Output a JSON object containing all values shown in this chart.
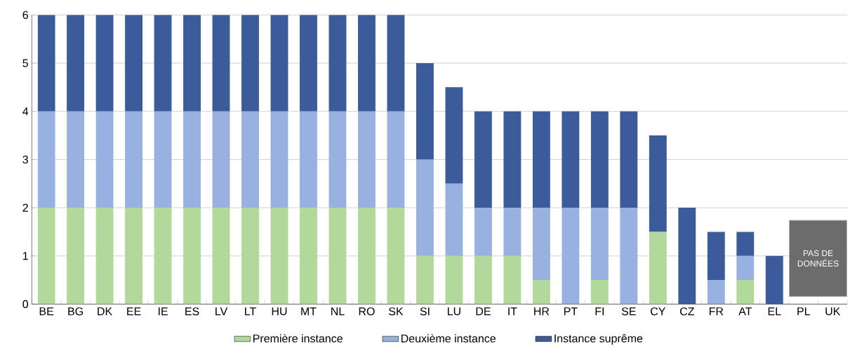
{
  "chart_data": {
    "type": "bar",
    "stacked": true,
    "categories": [
      "BE",
      "BG",
      "DK",
      "EE",
      "IE",
      "ES",
      "LV",
      "LT",
      "HU",
      "MT",
      "NL",
      "RO",
      "SK",
      "SI",
      "LU",
      "DE",
      "IT",
      "HR",
      "PT",
      "FI",
      "SE",
      "CY",
      "CZ",
      "FR",
      "AT",
      "EL",
      "PL",
      "UK"
    ],
    "series": [
      {
        "name": "Première instance",
        "color": "#b3d89c",
        "values": [
          2,
          2,
          2,
          2,
          2,
          2,
          2,
          2,
          2,
          2,
          2,
          2,
          2,
          1,
          1,
          1,
          1,
          0.5,
          0,
          0.5,
          0,
          1.5,
          0,
          0,
          0.5,
          0,
          null,
          null
        ]
      },
      {
        "name": "Deuxième instance",
        "color": "#98b1e0",
        "values": [
          2,
          2,
          2,
          2,
          2,
          2,
          2,
          2,
          2,
          2,
          2,
          2,
          2,
          2,
          1.5,
          1,
          1,
          1.5,
          2,
          1.5,
          2,
          0,
          0,
          0.5,
          0.5,
          0,
          null,
          null
        ]
      },
      {
        "name": "Instance suprême",
        "color": "#3b5b9a",
        "values": [
          2,
          2,
          2,
          2,
          2,
          2,
          2,
          2,
          2,
          2,
          2,
          2,
          2,
          2,
          2,
          2,
          2,
          2,
          2,
          2,
          2,
          2,
          2,
          1,
          0.5,
          1,
          null,
          null
        ]
      }
    ],
    "ylim": [
      0,
      6
    ],
    "yticks": [
      0,
      1,
      2,
      3,
      4,
      5,
      6
    ],
    "grid": "y",
    "legend": "bottom",
    "annotations": [
      "PAS DE DONNÉES"
    ]
  }
}
